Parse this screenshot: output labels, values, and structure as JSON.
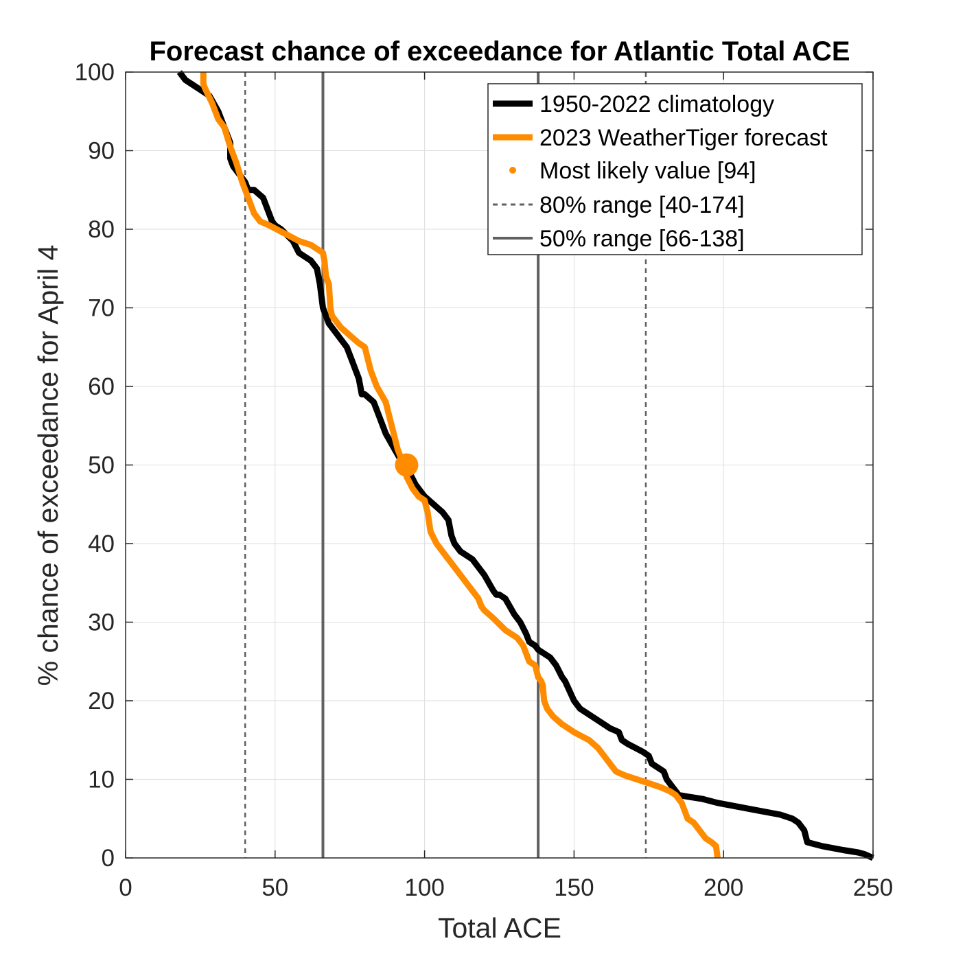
{
  "chart_data": {
    "type": "line",
    "title": "Forecast chance of exceedance for Atlantic Total ACE",
    "xlabel": "Total ACE",
    "ylabel": "% chance of exceedance for April 4",
    "xlim": [
      0,
      250
    ],
    "ylim": [
      0,
      100
    ],
    "xticks": [
      0,
      50,
      100,
      150,
      200,
      250
    ],
    "yticks": [
      0,
      10,
      20,
      30,
      40,
      50,
      60,
      70,
      80,
      90,
      100
    ],
    "grid": true,
    "legend_position": "top-right",
    "colors": {
      "climatology": "#000000",
      "forecast": "#ff8c00",
      "range": "#606060"
    },
    "series": [
      {
        "name": "1950-2022 climatology",
        "x": [
          18,
          20,
          22,
          28,
          31,
          33,
          35,
          35,
          35.5,
          36,
          40,
          41,
          43,
          46,
          48,
          49,
          50,
          52,
          56,
          58,
          60,
          62,
          64,
          65,
          66,
          67,
          68,
          69,
          72,
          74,
          76,
          77,
          78,
          79,
          80,
          83,
          85,
          87,
          90,
          93,
          95,
          97,
          100,
          103,
          106,
          108,
          109,
          110,
          112,
          116,
          120,
          123,
          124,
          125,
          127,
          130,
          132,
          134,
          135,
          137,
          138,
          142,
          144,
          146,
          147,
          150,
          152,
          156,
          160,
          162,
          165,
          166,
          168,
          173,
          175,
          176,
          178,
          180,
          181,
          183,
          185,
          188,
          193,
          198,
          205,
          212,
          219,
          223,
          225,
          227,
          228,
          233,
          240,
          245,
          247,
          250
        ],
        "y": [
          100,
          99,
          98.5,
          97,
          95,
          93,
          91,
          89,
          88.5,
          88,
          86,
          85,
          85,
          84,
          82,
          81,
          80.5,
          80,
          78.5,
          77,
          76.5,
          76,
          75,
          73,
          70,
          69,
          68,
          67.5,
          66,
          65,
          63,
          62,
          61,
          59,
          59,
          58,
          56,
          54,
          52,
          50,
          49,
          47.5,
          46,
          45,
          44,
          43,
          41,
          40,
          39,
          38,
          36,
          34,
          33.5,
          33.5,
          33,
          31,
          30,
          28.5,
          27.5,
          27,
          26.5,
          25.5,
          24.5,
          23,
          22.5,
          20,
          19,
          18,
          17,
          16.5,
          16,
          15,
          14.5,
          13.5,
          13,
          12,
          11.5,
          11,
          10,
          9,
          8,
          7.8,
          7.5,
          7,
          6.5,
          6,
          5.5,
          5,
          4.5,
          3.5,
          2,
          1.5,
          1,
          0.7,
          0.5,
          0
        ]
      },
      {
        "name": "2023 WeatherTiger forecast",
        "x": [
          26,
          26,
          26.5,
          29,
          31,
          33,
          35,
          37,
          39,
          41,
          42,
          43,
          44,
          45,
          48,
          53,
          58,
          62,
          66,
          66.5,
          67,
          68,
          68.5,
          69,
          70,
          72,
          75,
          78,
          80,
          82,
          84,
          87,
          89,
          91,
          92,
          93,
          94,
          96,
          98,
          100,
          101,
          102,
          104,
          106,
          110,
          114,
          117,
          118,
          118.5,
          119,
          120,
          123,
          127,
          131,
          133,
          135,
          137,
          138,
          139,
          139.5,
          140,
          141,
          143,
          146,
          150,
          155,
          158,
          160,
          162,
          164,
          167,
          171,
          175,
          179,
          182,
          184,
          185,
          186,
          187,
          188,
          190,
          191,
          193,
          194,
          196,
          197.5,
          198
        ],
        "y": [
          100,
          98.5,
          98,
          96,
          94,
          93,
          90.5,
          88.5,
          86,
          84,
          83,
          82,
          81.5,
          81,
          80.5,
          79.5,
          78.5,
          78,
          77,
          76,
          74,
          73,
          70,
          69,
          68.5,
          67.5,
          66.5,
          65.5,
          65,
          62,
          60,
          58,
          55,
          52,
          51,
          50,
          48.5,
          47,
          46,
          45.5,
          44,
          41.5,
          40,
          39,
          37,
          35,
          33.5,
          33,
          32.5,
          32,
          31.5,
          30.5,
          29,
          28,
          27,
          25,
          24.5,
          23,
          22.5,
          22,
          20,
          19,
          18,
          17,
          16,
          15,
          14,
          13,
          12,
          11,
          10.5,
          10,
          9.5,
          9,
          8.5,
          8,
          7.5,
          7,
          6,
          5,
          4.5,
          4,
          3,
          2.5,
          2,
          1.5,
          0
        ]
      }
    ],
    "most_likely": {
      "name": "Most likely value [94]",
      "x": 94,
      "y": 50
    },
    "range_80": {
      "name": "80% range [40-174]",
      "low": 40,
      "high": 174
    },
    "range_50": {
      "name": "50% range [66-138]",
      "low": 66,
      "high": 138
    }
  }
}
